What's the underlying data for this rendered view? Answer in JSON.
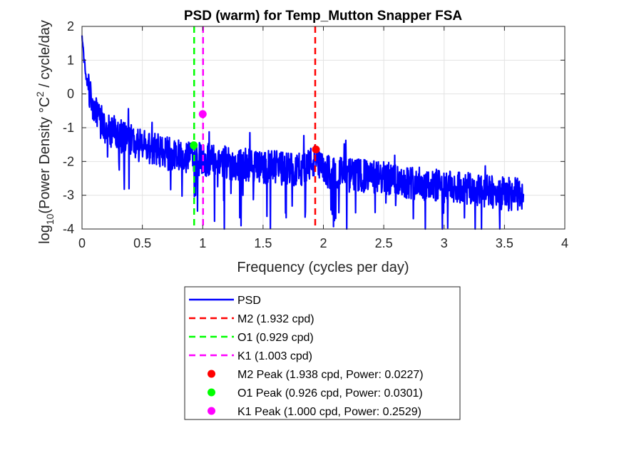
{
  "chart_data": {
    "type": "line",
    "title": "PSD (warm) for Temp_Mutton Snapper FSA",
    "xlabel": "Frequency (cycles per day)",
    "ylabel": {
      "prefix": "log",
      "sub": "10",
      "main": "(Power Density °C",
      "sup": "2",
      "tail": " / cycle/day"
    },
    "xlim": [
      0,
      4
    ],
    "ylim": [
      -4,
      2
    ],
    "xticks": [
      0,
      0.5,
      1,
      1.5,
      2,
      2.5,
      3,
      3.5,
      4
    ],
    "xtick_labels": [
      "0",
      "0.5",
      "1",
      "1.5",
      "2",
      "2.5",
      "3",
      "3.5",
      "4"
    ],
    "yticks": [
      -4,
      -3,
      -2,
      -1,
      0,
      1,
      2
    ],
    "ytick_labels": [
      "-4",
      "-3",
      "-2",
      "-1",
      "0",
      "1",
      "2"
    ],
    "grid": true,
    "legend_position": "below plot",
    "series": [
      {
        "name": "PSD",
        "color": "#0000ff",
        "style": "solid",
        "x_range": [
          0,
          3.66
        ],
        "trend_points": [
          [
            0.005,
            1.6
          ],
          [
            0.01,
            1.3
          ],
          [
            0.02,
            0.9
          ],
          [
            0.04,
            0.4
          ],
          [
            0.07,
            -0.1
          ],
          [
            0.1,
            -0.5
          ],
          [
            0.15,
            -0.8
          ],
          [
            0.2,
            -1.0
          ],
          [
            0.3,
            -1.2
          ],
          [
            0.4,
            -1.4
          ],
          [
            0.5,
            -1.55
          ],
          [
            0.6,
            -1.65
          ],
          [
            0.7,
            -1.75
          ],
          [
            0.8,
            -1.85
          ],
          [
            0.9,
            -1.9
          ],
          [
            1.0,
            -1.95
          ],
          [
            1.2,
            -2.05
          ],
          [
            1.5,
            -2.15
          ],
          [
            1.8,
            -2.25
          ],
          [
            1.93,
            -2.0
          ],
          [
            2.0,
            -2.3
          ],
          [
            2.5,
            -2.5
          ],
          [
            3.0,
            -2.75
          ],
          [
            3.5,
            -2.95
          ],
          [
            3.66,
            -3.0
          ]
        ]
      }
    ],
    "reference_lines": [
      {
        "name": "M2 (1.932 cpd)",
        "x": 1.932,
        "color": "#ff0000"
      },
      {
        "name": "O1 (0.929 cpd)",
        "x": 0.929,
        "color": "#00ff00"
      },
      {
        "name": "K1 (1.003 cpd)",
        "x": 1.003,
        "color": "#ff00ff"
      }
    ],
    "peaks": [
      {
        "name": "M2 Peak (1.938 cpd, Power: 0.0227)",
        "x": 1.938,
        "power": 0.0227,
        "color": "#ff0000"
      },
      {
        "name": "O1 Peak (0.926 cpd, Power: 0.0301)",
        "x": 0.926,
        "power": 0.0301,
        "color": "#00ff00"
      },
      {
        "name": "K1 Peak (1.000 cpd, Power: 0.2529)",
        "x": 1.0,
        "power": 0.2529,
        "color": "#ff00ff"
      }
    ]
  }
}
